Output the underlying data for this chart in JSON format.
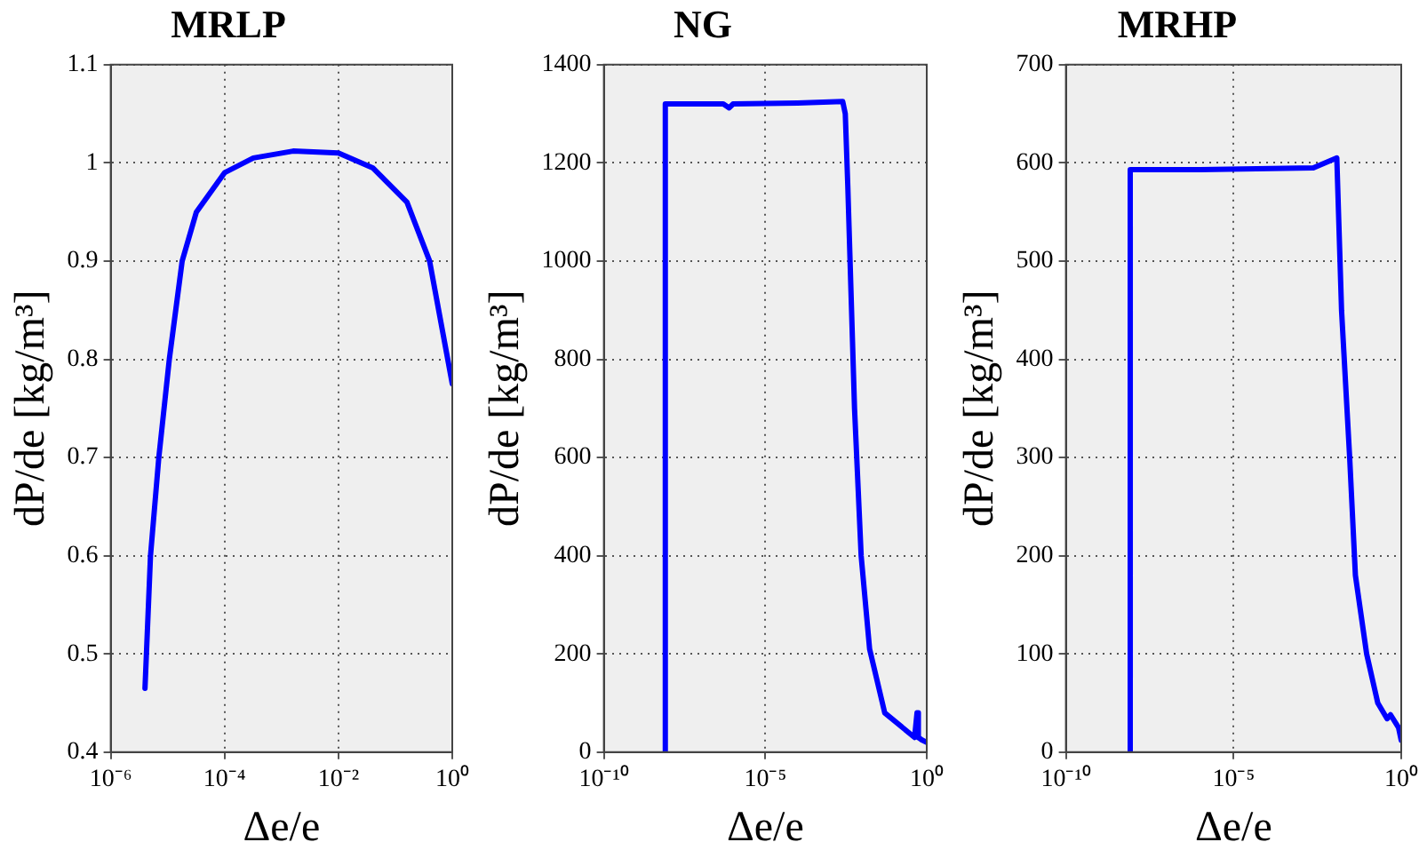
{
  "chart_data": [
    {
      "type": "line",
      "title": "MRLP",
      "xlabel": "Δe/e",
      "ylabel": "dP/de [kg/m³]",
      "log": "x",
      "grid": true,
      "marker": "none",
      "line_style": "solid",
      "xlim": [
        1e-06,
        1
      ],
      "xticks": [
        {
          "value": 1e-06,
          "label": "10⁻⁶"
        },
        {
          "value": 0.0001,
          "label": "10⁻⁴"
        },
        {
          "value": 0.01,
          "label": "10⁻²"
        },
        {
          "value": 1,
          "label": "10⁰"
        }
      ],
      "ylim": [
        0.4,
        1.1
      ],
      "yticks": [
        0.4,
        0.5,
        0.6,
        0.7,
        0.8,
        0.9,
        1,
        1.1
      ],
      "series": [
        {
          "color": "#0000ff",
          "x": [
            4e-06,
            5e-06,
            7e-06,
            1.07e-05,
            1.8e-05,
            3.2e-05,
            0.0001,
            0.00032,
            0.0016,
            0.01,
            0.04,
            0.16,
            0.4,
            1
          ],
          "values": [
            0.465,
            0.6,
            0.7,
            0.8,
            0.9,
            0.95,
            0.99,
            1.005,
            1.012,
            1.01,
            0.995,
            0.96,
            0.9,
            0.775
          ]
        }
      ]
    },
    {
      "type": "line",
      "title": "NG",
      "xlabel": "Δe/e",
      "ylabel": "dP/de [kg/m³]",
      "log": "x",
      "grid": true,
      "marker": "none",
      "line_style": "solid",
      "xlim": [
        1e-10,
        1
      ],
      "xticks": [
        {
          "value": 1e-10,
          "label": "10⁻¹⁰"
        },
        {
          "value": 1e-05,
          "label": "10⁻⁵"
        },
        {
          "value": 1,
          "label": "10⁰"
        }
      ],
      "ylim": [
        0,
        1400
      ],
      "yticks": [
        0,
        200,
        400,
        600,
        800,
        1000,
        1200,
        1400
      ],
      "series": [
        {
          "color": "#0000ff",
          "x": [
            8e-09,
            8e-09,
            5e-07,
            7.6e-07,
            1e-06,
            0.0001,
            0.0025,
            0.003,
            0.0036,
            0.0058,
            0.0093,
            0.017,
            0.05,
            0.42,
            0.5,
            0.55,
            0.7,
            1
          ],
          "values": [
            0,
            1320,
            1320,
            1312,
            1320,
            1322,
            1325,
            1300,
            1150,
            700,
            400,
            210,
            80,
            30,
            80,
            30,
            25,
            20
          ]
        }
      ]
    },
    {
      "type": "line",
      "title": "MRHP",
      "xlabel": "Δe/e",
      "ylabel": "dP/de [kg/m³]",
      "log": "x",
      "grid": true,
      "marker": "none",
      "line_style": "solid",
      "xlim": [
        1e-10,
        1
      ],
      "xticks": [
        {
          "value": 1e-10,
          "label": "10⁻¹⁰"
        },
        {
          "value": 1e-05,
          "label": "10⁻⁵"
        },
        {
          "value": 1,
          "label": "10⁰"
        }
      ],
      "ylim": [
        0,
        700
      ],
      "yticks": [
        0,
        100,
        200,
        300,
        400,
        500,
        600,
        700
      ],
      "series": [
        {
          "color": "#0000ff",
          "x": [
            8.3e-09,
            8.3e-09,
            1e-06,
            0.0024,
            0.012,
            0.0166,
            0.029,
            0.043,
            0.093,
            0.2,
            0.38,
            0.48,
            0.83,
            1
          ],
          "values": [
            0,
            593,
            593,
            595,
            605,
            450,
            300,
            180,
            100,
            50,
            34,
            38,
            25,
            12
          ]
        }
      ]
    }
  ]
}
